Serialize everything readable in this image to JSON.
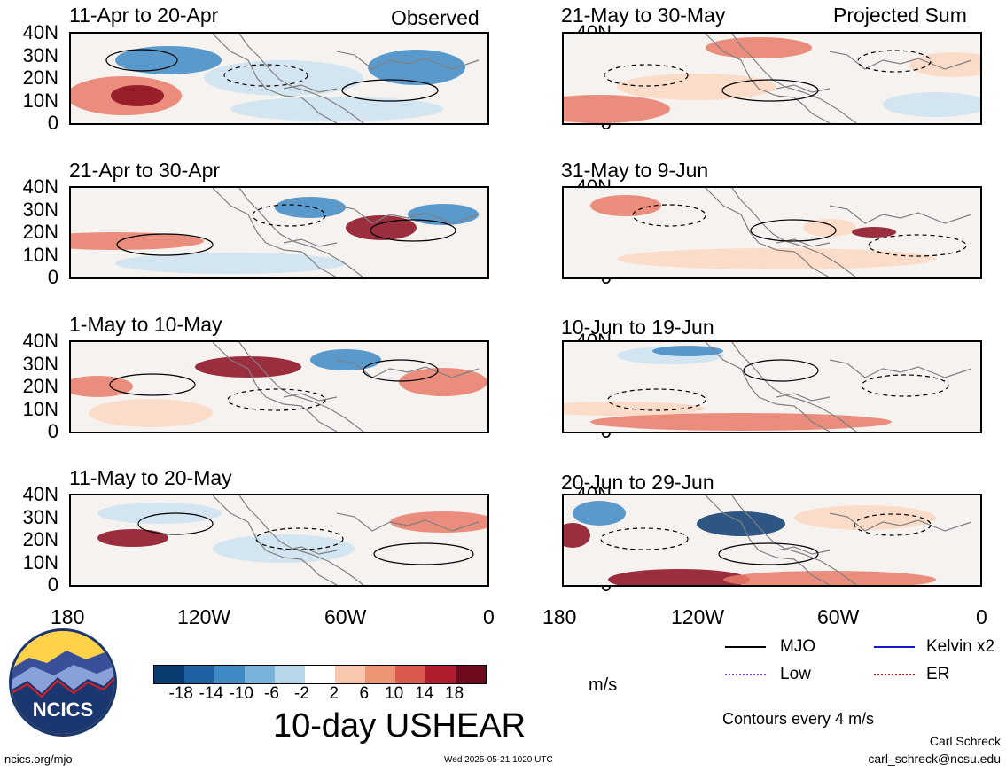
{
  "colors": {
    "neg_max": "#0a3b70",
    "neg_mid": "#3e8ac4",
    "neg_low": "#cde3f0",
    "pos_low": "#fbd8c2",
    "pos_mid": "#e77b67",
    "pos_max": "#8a0b1f",
    "coast": "#808080",
    "frame": "#000000"
  },
  "panels": [
    {
      "title": "11-Apr to 20-Apr",
      "corner": "Observed"
    },
    {
      "title": "21-May to 30-May",
      "corner": "Projected Sum"
    },
    {
      "title": "21-Apr to 30-Apr",
      "corner": ""
    },
    {
      "title": "31-May to 9-Jun",
      "corner": ""
    },
    {
      "title": "1-May to 10-May",
      "corner": ""
    },
    {
      "title": "10-Jun to 19-Jun",
      "corner": ""
    },
    {
      "title": "11-May to 20-May",
      "corner": ""
    },
    {
      "title": "20-Jun to 29-Jun",
      "corner": ""
    }
  ],
  "chart_data": {
    "type": "heatmap",
    "title": "10-day USHEAR",
    "units": "m/s",
    "y_ticks": [
      "40N",
      "30N",
      "20N",
      "10N",
      "0"
    ],
    "x_ticks": [
      "180",
      "120W",
      "60W",
      "0"
    ],
    "colorbar_ticks": [
      "-18",
      "-14",
      "-10",
      "-6",
      "-2",
      "2",
      "6",
      "10",
      "14",
      "18"
    ],
    "colorbar_colors": [
      "#0a3b70",
      "#1f5fa3",
      "#3e8ac4",
      "#78b2d8",
      "#b6d6ea",
      "#ffffff",
      "#f8c8ae",
      "#eb9574",
      "#d9594d",
      "#b11c2e",
      "#6f0a1c"
    ],
    "legend": [
      {
        "label": "MJO",
        "color": "#000000",
        "style": "solid"
      },
      {
        "label": "Kelvin x2",
        "color": "#1515cc",
        "style": "solid"
      },
      {
        "label": "Low",
        "color": "#9b3bd6",
        "style": "dotted"
      },
      {
        "label": "ER",
        "color": "#cc1515",
        "style": "dotted"
      }
    ],
    "contour_note": "Contours every 4 m/s"
  },
  "footer": {
    "logo_text": "NCICS",
    "left_url": "ncics.org/mjo",
    "timestamp": "Wed 2025-05-21 1020 UTC",
    "author": "Carl Schreck",
    "email": "carl_schreck@ncsu.edu"
  }
}
